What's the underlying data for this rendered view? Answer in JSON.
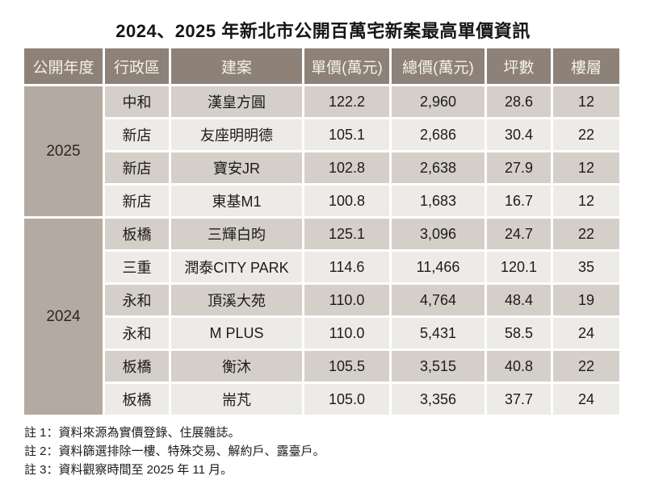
{
  "title": "2024、2025 年新北市公開百萬宅新案最高單價資訊",
  "colors": {
    "header_bg": "#8e8278",
    "header_text": "#f4f1ea",
    "year_cell_bg": "#b5aaa1",
    "row_dark_bg": "#d5cfca",
    "row_light_bg": "#edebe7",
    "text": "#1d1c1a"
  },
  "table": {
    "headers": [
      "公開年度",
      "行政區",
      "建案",
      "單價(萬元)",
      "總價(萬元)",
      "坪數",
      "樓層"
    ],
    "groups": [
      {
        "year": "2025",
        "rowspan": 4
      },
      {
        "year": "2024",
        "rowspan": 6
      }
    ],
    "rows": [
      {
        "district": "中和",
        "project": "漢皇方圓",
        "unit_price": "122.2",
        "total_price": "2,960",
        "ping": "28.6",
        "floor": "12"
      },
      {
        "district": "新店",
        "project": "友座明明德",
        "unit_price": "105.1",
        "total_price": "2,686",
        "ping": "30.4",
        "floor": "22"
      },
      {
        "district": "新店",
        "project": "寶安JR",
        "unit_price": "102.8",
        "total_price": "2,638",
        "ping": "27.9",
        "floor": "12"
      },
      {
        "district": "新店",
        "project": "東基M1",
        "unit_price": "100.8",
        "total_price": "1,683",
        "ping": "16.7",
        "floor": "12"
      },
      {
        "district": "板橋",
        "project": "三輝白昀",
        "unit_price": "125.1",
        "total_price": "3,096",
        "ping": "24.7",
        "floor": "22"
      },
      {
        "district": "三重",
        "project": "潤泰CITY PARK",
        "unit_price": "114.6",
        "total_price": "11,466",
        "ping": "120.1",
        "floor": "35"
      },
      {
        "district": "永和",
        "project": "頂溪大苑",
        "unit_price": "110.0",
        "total_price": "4,764",
        "ping": "48.4",
        "floor": "19"
      },
      {
        "district": "永和",
        "project": "M PLUS",
        "unit_price": "110.0",
        "total_price": "5,431",
        "ping": "58.5",
        "floor": "24"
      },
      {
        "district": "板橋",
        "project": "衡沐",
        "unit_price": "105.5",
        "total_price": "3,515",
        "ping": "40.8",
        "floor": "22"
      },
      {
        "district": "板橋",
        "project": "耑芃",
        "unit_price": "105.0",
        "total_price": "3,356",
        "ping": "37.7",
        "floor": "24"
      }
    ]
  },
  "notes": [
    "註 1：資料來源為實價登錄、住展雜誌。",
    "註 2：資料篩選排除一樓、特殊交易、解約戶、露臺戶。",
    "註 3：資料觀察時間至 2025 年 11 月。"
  ],
  "chart_data": {
    "type": "table",
    "title": "2024、2025 年新北市公開百萬宅新案最高單價資訊",
    "columns": [
      "公開年度",
      "行政區",
      "建案",
      "單價(萬元)",
      "總價(萬元)",
      "坪數",
      "樓層"
    ],
    "rows": [
      [
        "2025",
        "中和",
        "漢皇方圓",
        122.2,
        2960,
        28.6,
        12
      ],
      [
        "2025",
        "新店",
        "友座明明德",
        105.1,
        2686,
        30.4,
        22
      ],
      [
        "2025",
        "新店",
        "寶安JR",
        102.8,
        2638,
        27.9,
        12
      ],
      [
        "2025",
        "新店",
        "東基M1",
        100.8,
        1683,
        16.7,
        12
      ],
      [
        "2024",
        "板橋",
        "三輝白昀",
        125.1,
        3096,
        24.7,
        22
      ],
      [
        "2024",
        "三重",
        "潤泰CITY PARK",
        114.6,
        11466,
        120.1,
        35
      ],
      [
        "2024",
        "永和",
        "頂溪大苑",
        110.0,
        4764,
        48.4,
        19
      ],
      [
        "2024",
        "永和",
        "M PLUS",
        110.0,
        5431,
        58.5,
        24
      ],
      [
        "2024",
        "板橋",
        "衡沐",
        105.5,
        3515,
        40.8,
        22
      ],
      [
        "2024",
        "板橋",
        "耑芃",
        105.0,
        3356,
        37.7,
        24
      ]
    ],
    "notes": [
      "註 1：資料來源為實價登錄、住展雜誌。",
      "註 2：資料篩選排除一樓、特殊交易、解約戶、露臺戶。",
      "註 3：資料觀察時間至 2025 年 11 月。"
    ]
  }
}
